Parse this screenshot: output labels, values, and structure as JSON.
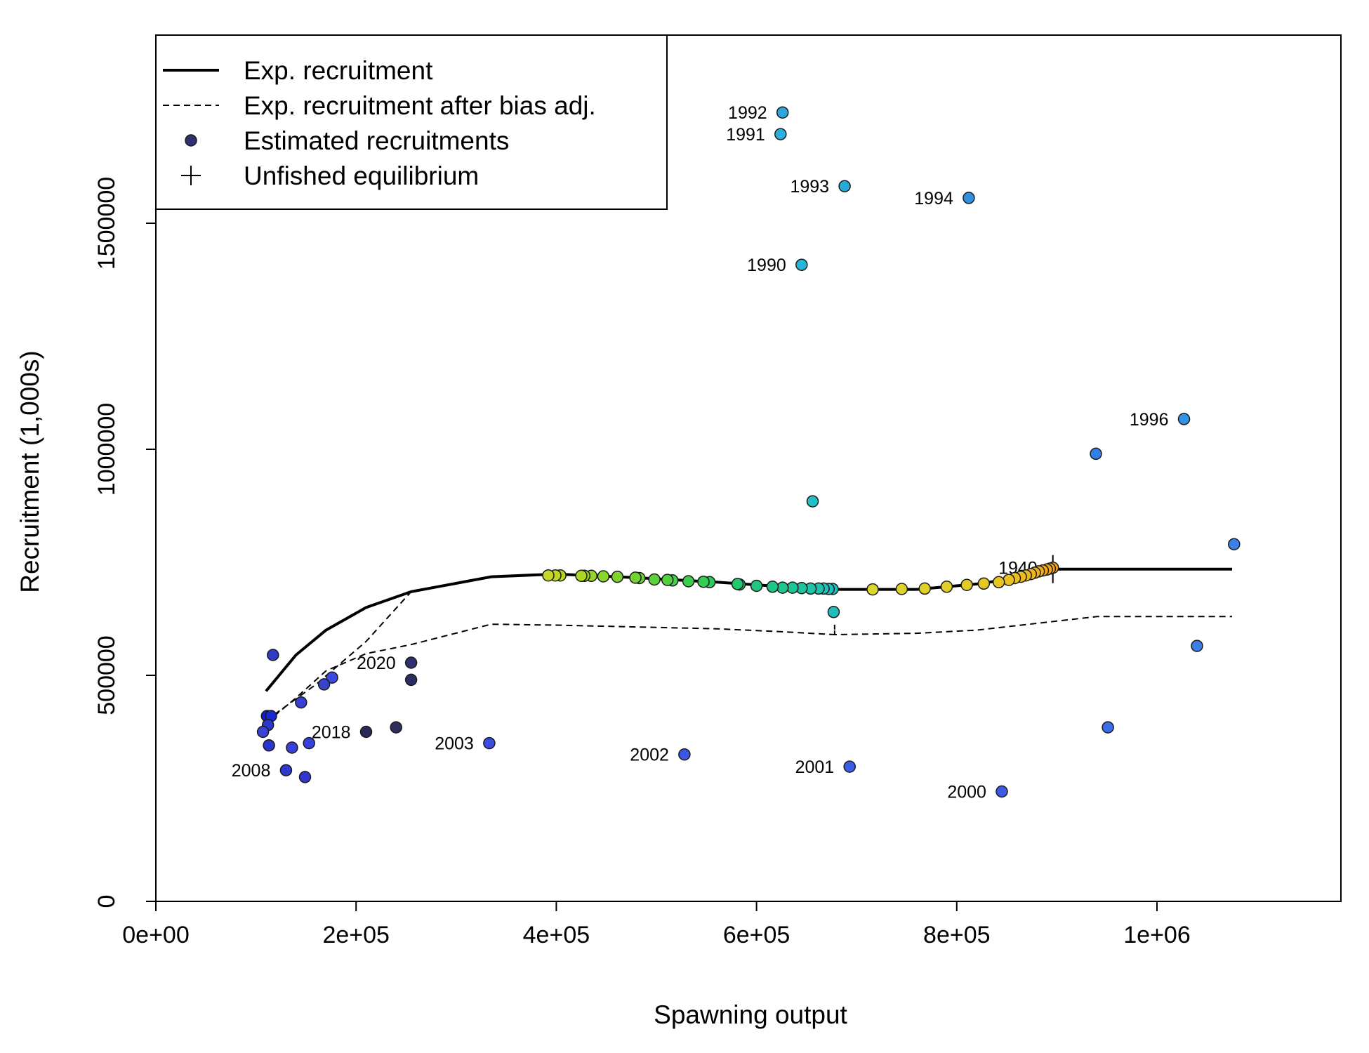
{
  "chart_data": {
    "type": "scatter",
    "xlabel": "Spawning output",
    "ylabel": "Recruitment (1,000s)",
    "xlim": [
      0,
      1180000
    ],
    "ylim": [
      0,
      1920000
    ],
    "x_ticks": [
      0,
      200000,
      400000,
      600000,
      800000,
      1000000
    ],
    "x_tick_labels": [
      "0e+00",
      "2e+05",
      "4e+05",
      "6e+05",
      "8e+05",
      "1e+06"
    ],
    "y_ticks": [
      0,
      500000,
      1000000,
      1500000
    ],
    "y_tick_labels": [
      "0",
      "500000",
      "1000000",
      "1500000"
    ],
    "legend": {
      "position": "top-left",
      "entries": [
        {
          "label": "Exp. recruitment",
          "symbol": "solid-line"
        },
        {
          "label": "Exp. recruitment after bias adj.",
          "symbol": "dashed-line"
        },
        {
          "label": "Estimated recruitments",
          "symbol": "point"
        },
        {
          "label": "Unfished equilibrium",
          "symbol": "cross"
        }
      ]
    },
    "expected_recruitment": [
      [
        110000,
        465000
      ],
      [
        140000,
        545000
      ],
      [
        170000,
        600000
      ],
      [
        210000,
        650000
      ],
      [
        255000,
        685000
      ],
      [
        335000,
        718000
      ],
      [
        400000,
        724000
      ],
      [
        480000,
        716000
      ],
      [
        560000,
        706000
      ],
      [
        620000,
        697000
      ],
      [
        680000,
        690000
      ],
      [
        760000,
        690000
      ],
      [
        820000,
        702000
      ],
      [
        860000,
        715000
      ],
      [
        896000,
        735000
      ],
      [
        1075000,
        735000
      ]
    ],
    "bias_adjusted_recruitment": [
      [
        110000,
        395000
      ],
      [
        140000,
        450000
      ],
      [
        170000,
        510000
      ],
      [
        210000,
        548000
      ],
      [
        255000,
        568000
      ],
      [
        335000,
        613000
      ],
      [
        400000,
        611000
      ],
      [
        480000,
        607000
      ],
      [
        560000,
        603000
      ],
      [
        620000,
        597000
      ],
      [
        678000,
        590000
      ],
      [
        678000,
        612000
      ],
      [
        678000,
        590000
      ],
      [
        760000,
        593000
      ],
      [
        820000,
        600000
      ],
      [
        860000,
        610000
      ],
      [
        940000,
        630000
      ],
      [
        1075000,
        630000
      ]
    ],
    "bias_adjusted_secondary": [
      [
        110000,
        400000
      ],
      [
        160000,
        480000
      ],
      [
        210000,
        575000
      ],
      [
        255000,
        685000
      ]
    ],
    "unfished_equilibrium": {
      "x": 896000,
      "y": 735000
    },
    "series": [
      {
        "values": [
          [
            896000,
            738000
          ],
          [
            893000,
            736000
          ],
          [
            890000,
            734000
          ],
          [
            886000,
            732000
          ],
          [
            882000,
            730000
          ],
          [
            878000,
            727000
          ],
          [
            874000,
            724000
          ],
          [
            869000,
            721000
          ],
          [
            864000,
            718000
          ],
          [
            858000,
            715000
          ],
          [
            852000,
            711000
          ],
          [
            842000,
            706000
          ],
          [
            827000,
            703000
          ],
          [
            810000,
            700000
          ],
          [
            790000,
            696000
          ],
          [
            768000,
            692000
          ],
          [
            745000,
            691000
          ],
          [
            716000,
            690000
          ]
        ]
      },
      {
        "values": [
          [
            676000,
            691000
          ],
          [
            672000,
            691000
          ],
          [
            667000,
            692000
          ],
          [
            662000,
            692000
          ],
          [
            654000,
            692000
          ],
          [
            645000,
            693000
          ],
          [
            636000,
            694000
          ],
          [
            626000,
            694000
          ],
          [
            616000,
            696000
          ],
          [
            600000,
            698000
          ],
          [
            583000,
            701000
          ],
          [
            581000,
            702000
          ]
        ]
      },
      {
        "values": [
          [
            553000,
            706000
          ],
          [
            547000,
            707000
          ],
          [
            532000,
            708000
          ],
          [
            516000,
            710000
          ],
          [
            511000,
            711000
          ],
          [
            498000,
            712000
          ],
          [
            483000,
            715000
          ],
          [
            479000,
            716000
          ],
          [
            461000,
            718000
          ],
          [
            447000,
            719000
          ],
          [
            435000,
            720000
          ],
          [
            428000,
            720000
          ],
          [
            425000,
            720000
          ],
          [
            404000,
            721000
          ],
          [
            399000,
            721000
          ],
          [
            392000,
            721000
          ]
        ]
      },
      {
        "values": [
          [
            626000,
            1745000
          ],
          [
            624000,
            1697000
          ],
          [
            688000,
            1582000
          ],
          [
            812000,
            1556000
          ],
          [
            645000,
            1408000
          ],
          [
            1027000,
            1067000
          ],
          [
            939000,
            990000
          ],
          [
            656000,
            885000
          ],
          [
            1077000,
            790000
          ],
          [
            677000,
            640000
          ],
          [
            1040000,
            565000
          ],
          [
            951000,
            385000
          ],
          [
            693000,
            298000
          ],
          [
            845000,
            243000
          ],
          [
            528000,
            325000
          ],
          [
            333000,
            350000
          ]
        ]
      },
      {
        "values": [
          [
            117000,
            545000
          ],
          [
            176000,
            495000
          ],
          [
            168000,
            480000
          ],
          [
            145000,
            440000
          ],
          [
            111000,
            410000
          ],
          [
            115000,
            410000
          ],
          [
            112000,
            390000
          ],
          [
            107000,
            375000
          ],
          [
            113000,
            345000
          ],
          [
            153000,
            350000
          ],
          [
            136000,
            340000
          ],
          [
            130000,
            290000
          ],
          [
            149000,
            275000
          ]
        ]
      },
      {
        "values": [
          [
            255000,
            528000
          ],
          [
            255000,
            490000
          ],
          [
            240000,
            385000
          ],
          [
            210000,
            375000
          ]
        ]
      }
    ],
    "point_colors": [
      [
        "#f2a51c",
        "#f2a51c",
        "#f1a81c",
        "#f0ab1c",
        "#efaf1d",
        "#eeb21d",
        "#edb51e",
        "#ecb81f",
        "#ebbb1f",
        "#eabf20",
        "#e9c221",
        "#e7c523",
        "#e5c824",
        "#e3cb26",
        "#e1ce28",
        "#dfd12a",
        "#dcd42c",
        "#d9d72e"
      ],
      [
        "#1fc0c0",
        "#1fc0bc",
        "#1fc1b5",
        "#1fc2ae",
        "#1fc3a6",
        "#1fc49e",
        "#1fc596",
        "#1fc68e",
        "#1fc786",
        "#1fc87e",
        "#20c976",
        "#21ca6e"
      ],
      [
        "#2ccc5c",
        "#34cd55",
        "#3ece4e",
        "#48cf48",
        "#52d042",
        "#5dd13c",
        "#68d236",
        "#73d331",
        "#7ed42d",
        "#89d52a",
        "#94d527",
        "#9fd625",
        "#aad724",
        "#b4d724",
        "#bed725",
        "#c6d628"
      ],
      [
        "#2ca6dc",
        "#29b0de",
        "#28a9dc",
        "#2f90e2",
        "#26b4d8",
        "#3293e4",
        "#3280e6",
        "#22c0c6",
        "#3a80e6",
        "#20bdbd",
        "#3a7ee6",
        "#3b6ee6",
        "#3b5ee4",
        "#3c5ae4",
        "#3c56e0",
        "#3c4ae0"
      ],
      [
        "#2e3cc8",
        "#3c48e0",
        "#3844cc",
        "#3a3ed4",
        "#1020d8",
        "#1628d4",
        "#2c38cc",
        "#3c42d4",
        "#2c34cc",
        "#3640dc",
        "#3a40d8",
        "#2e38cc",
        "#3436d0"
      ],
      [
        "#303070",
        "#2c2c64",
        "#2e2e5c",
        "#2a2a58"
      ]
    ],
    "point_labels": [
      {
        "text": "1992",
        "x": 626000,
        "y": 1745000
      },
      {
        "text": "1991",
        "x": 624000,
        "y": 1697000
      },
      {
        "text": "1993",
        "x": 688000,
        "y": 1582000
      },
      {
        "text": "1994",
        "x": 812000,
        "y": 1556000
      },
      {
        "text": "1990",
        "x": 645000,
        "y": 1408000
      },
      {
        "text": "1996",
        "x": 1027000,
        "y": 1067000
      },
      {
        "text": "1940",
        "x": 896000,
        "y": 738000
      },
      {
        "text": "2020",
        "x": 255000,
        "y": 528000
      },
      {
        "text": "2018",
        "x": 210000,
        "y": 375000
      },
      {
        "text": "2003",
        "x": 333000,
        "y": 350000
      },
      {
        "text": "2002",
        "x": 528000,
        "y": 325000
      },
      {
        "text": "2001",
        "x": 693000,
        "y": 298000
      },
      {
        "text": "2000",
        "x": 845000,
        "y": 243000
      },
      {
        "text": "2008",
        "x": 130000,
        "y": 290000
      }
    ]
  }
}
